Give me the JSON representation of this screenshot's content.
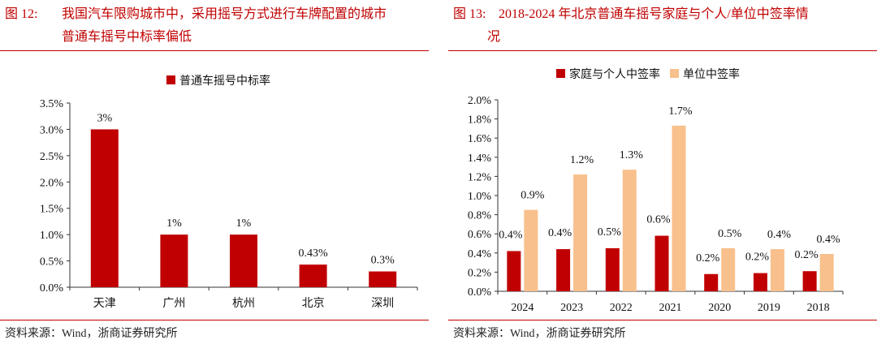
{
  "charts": [
    {
      "figure_number": "图 12:",
      "title_line1": "我国汽车限购城市中，采用摇号方式进行车牌配置的城市",
      "title_line2": "普通车摇号中标率偏低",
      "source": "资料来源：Wind，浙商证券研究所"
    },
    {
      "figure_number": "图 13:",
      "title_line1": "2018-2024 年北京普通车摇号家庭与个人/单位中签率情",
      "title_line2": "况",
      "source": "资料来源：Wind，浙商证券研究所"
    }
  ],
  "chart_data": [
    {
      "type": "bar",
      "categories": [
        "天津",
        "广州",
        "杭州",
        "北京",
        "深圳"
      ],
      "series": [
        {
          "name": "普通车摇号中标率",
          "values": [
            3.0,
            1.0,
            1.0,
            0.43,
            0.3
          ],
          "labels": [
            "3%",
            "1%",
            "1%",
            "0.43%",
            "0.3%"
          ],
          "color": "#c00000"
        }
      ],
      "ylim": [
        0,
        3.5
      ],
      "yticks": [
        "0.0%",
        "0.5%",
        "1.0%",
        "1.5%",
        "2.0%",
        "2.5%",
        "3.0%",
        "3.5%"
      ],
      "grid": false,
      "legend_position": "top-center"
    },
    {
      "type": "bar",
      "categories": [
        "2024",
        "2023",
        "2022",
        "2021",
        "2020",
        "2019",
        "2018"
      ],
      "series": [
        {
          "name": "家庭与个人中签率",
          "values": [
            0.42,
            0.44,
            0.45,
            0.58,
            0.18,
            0.19,
            0.21
          ],
          "labels": [
            "0.4%",
            "0.4%",
            "0.5%",
            "0.6%",
            "0.2%",
            "0.2%",
            "0.2%"
          ],
          "color": "#c00000"
        },
        {
          "name": "单位中签率",
          "values": [
            0.85,
            1.22,
            1.27,
            1.73,
            0.45,
            0.44,
            0.39
          ],
          "labels": [
            "0.9%",
            "1.2%",
            "1.3%",
            "1.7%",
            "0.5%",
            "0.4%",
            "0.4%"
          ],
          "color": "#f8c08c"
        }
      ],
      "ylim": [
        0,
        2.0
      ],
      "yticks": [
        "0.0%",
        "0.2%",
        "0.4%",
        "0.6%",
        "0.8%",
        "1.0%",
        "1.2%",
        "1.4%",
        "1.6%",
        "1.8%",
        "2.0%"
      ],
      "grid": false,
      "legend_position": "top-center"
    }
  ]
}
